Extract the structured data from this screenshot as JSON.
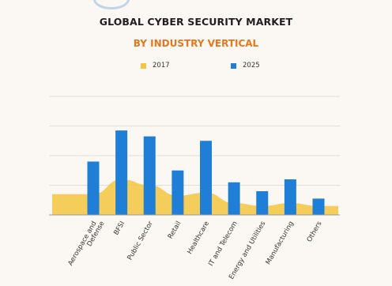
{
  "title": "GLOBAL CYBER SECURITY MARKET",
  "subtitle": "BY INDUSTRY VERTICAL",
  "colors": {
    "background": "#fbf7f2",
    "y2017": "#f2c641",
    "y2025": "#1f7fd6",
    "subtitle": "#e0791f"
  },
  "chart_data": {
    "type": "bar",
    "categories": [
      "Aerospace and Defense",
      "BFSI",
      "Public Sector",
      "Retail",
      "Healthcare",
      "IT and Telecom",
      "Energy and Utilities",
      "Manufacturing",
      "Others"
    ],
    "series": [
      {
        "name": "2017",
        "type": "area",
        "color": "#f2c641",
        "values": [
          0.7,
          1.2,
          1.0,
          0.65,
          0.75,
          0.4,
          0.3,
          0.4,
          0.3
        ]
      },
      {
        "name": "2025",
        "type": "bar",
        "color": "#1f7fd6",
        "values": [
          1.8,
          2.85,
          2.65,
          1.5,
          2.5,
          1.1,
          0.8,
          1.2,
          0.55
        ]
      }
    ],
    "ylim": [
      0,
      4
    ],
    "grid": true,
    "legend": "top-center",
    "xlabel": "",
    "ylabel": ""
  }
}
